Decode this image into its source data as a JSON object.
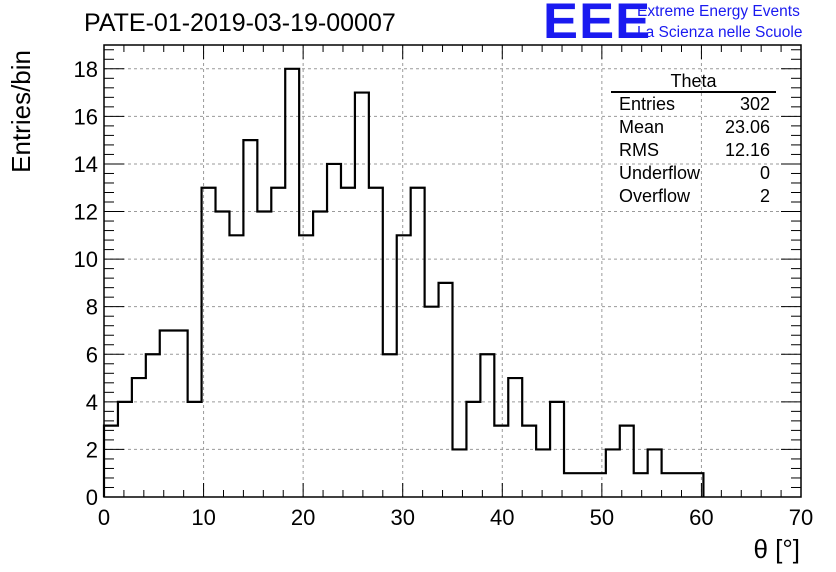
{
  "header": {
    "title": "PATE-01-2019-03-19-00007",
    "logo_text": "EEE",
    "org_line1": "Extreme Energy Events",
    "org_line2": "La Scienza nelle Scuole",
    "logo_color": "#1a1af0"
  },
  "stats_box": {
    "title": "Theta",
    "rows": [
      {
        "label": "Entries",
        "value": "302"
      },
      {
        "label": "Mean",
        "value": "23.06"
      },
      {
        "label": "RMS",
        "value": "12.16"
      },
      {
        "label": "Underflow",
        "value": "0"
      },
      {
        "label": "Overflow",
        "value": "2"
      }
    ]
  },
  "chart_data": {
    "type": "bar",
    "style": "step-histogram",
    "xlabel": "θ [°]",
    "ylabel": "Entries/bin",
    "xlim": [
      0,
      70
    ],
    "ylim": [
      0,
      19
    ],
    "x_ticks": [
      0,
      10,
      20,
      30,
      40,
      50,
      60,
      70
    ],
    "y_ticks": [
      0,
      2,
      4,
      6,
      8,
      10,
      12,
      14,
      16,
      18
    ],
    "grid": true,
    "bin_width": 1.4,
    "bin_edges_start": 0,
    "values": [
      3,
      4,
      5,
      6,
      7,
      7,
      4,
      13,
      12,
      11,
      15,
      12,
      13,
      18,
      11,
      12,
      14,
      13,
      17,
      13,
      6,
      11,
      13,
      8,
      9,
      2,
      4,
      6,
      3,
      5,
      3,
      2,
      4,
      1,
      1,
      1,
      2,
      3,
      1,
      2,
      1,
      1,
      1
    ]
  }
}
